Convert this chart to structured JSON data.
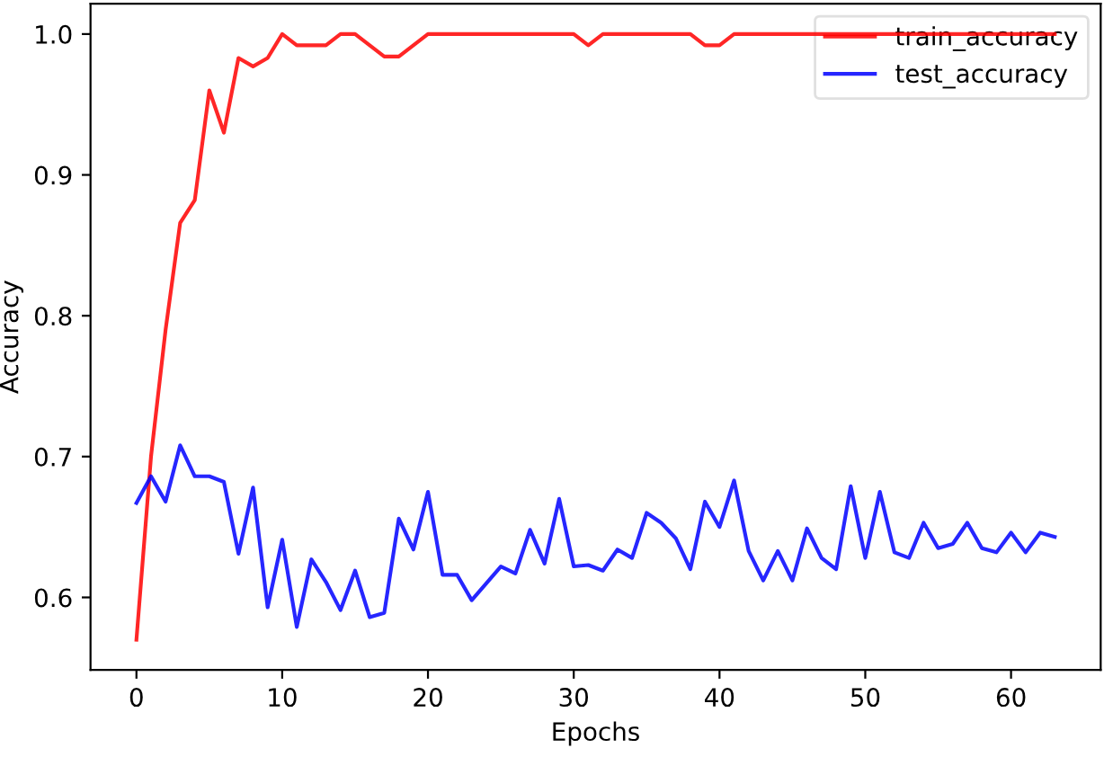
{
  "chart_data": {
    "type": "line",
    "xlabel": "Epochs",
    "ylabel": "Accuracy",
    "x": [
      0,
      1,
      2,
      3,
      4,
      5,
      6,
      7,
      8,
      9,
      10,
      11,
      12,
      13,
      14,
      15,
      16,
      17,
      18,
      19,
      20,
      21,
      22,
      23,
      24,
      25,
      26,
      27,
      28,
      29,
      30,
      31,
      32,
      33,
      34,
      35,
      36,
      37,
      38,
      39,
      40,
      41,
      42,
      43,
      44,
      45,
      46,
      47,
      48,
      49,
      50,
      51,
      52,
      53,
      54,
      55,
      56,
      57,
      58,
      59,
      60,
      61,
      62,
      63
    ],
    "series": [
      {
        "name": "train_accuracy",
        "color": "#ff0000",
        "values": [
          0.57,
          0.7,
          0.79,
          0.866,
          0.882,
          0.96,
          0.93,
          0.983,
          0.977,
          0.983,
          1.0,
          0.992,
          0.992,
          0.992,
          1.0,
          1.0,
          0.992,
          0.984,
          0.984,
          0.992,
          1.0,
          1.0,
          1.0,
          1.0,
          1.0,
          1.0,
          1.0,
          1.0,
          1.0,
          1.0,
          1.0,
          0.992,
          1.0,
          1.0,
          1.0,
          1.0,
          1.0,
          1.0,
          1.0,
          0.992,
          0.992,
          1.0,
          1.0,
          1.0,
          1.0,
          1.0,
          1.0,
          1.0,
          1.0,
          1.0,
          1.0,
          1.0,
          1.0,
          1.0,
          1.0,
          1.0,
          1.0,
          1.0,
          1.0,
          1.0,
          1.0,
          1.0,
          1.0,
          1.0
        ]
      },
      {
        "name": "test_accuracy",
        "color": "#0000ff",
        "values": [
          0.667,
          0.686,
          0.668,
          0.708,
          0.686,
          0.686,
          0.682,
          0.631,
          0.678,
          0.593,
          0.641,
          0.579,
          0.627,
          0.611,
          0.591,
          0.619,
          0.586,
          0.589,
          0.656,
          0.634,
          0.675,
          0.616,
          0.616,
          0.598,
          0.61,
          0.622,
          0.617,
          0.648,
          0.624,
          0.67,
          0.622,
          0.623,
          0.619,
          0.634,
          0.628,
          0.66,
          0.653,
          0.642,
          0.62,
          0.668,
          0.65,
          0.683,
          0.633,
          0.612,
          0.633,
          0.612,
          0.649,
          0.628,
          0.62,
          0.679,
          0.628,
          0.675,
          0.632,
          0.628,
          0.653,
          0.635,
          0.638,
          0.653,
          0.635,
          0.632,
          0.646,
          0.632,
          0.646,
          0.643
        ]
      }
    ],
    "xlim": [
      -3.15,
      66.15
    ],
    "xticks": [
      0,
      10,
      20,
      30,
      40,
      50,
      60
    ],
    "ylim": [
      0.5485,
      1.0215
    ],
    "yticks": [
      0.6,
      0.7,
      0.8,
      0.9,
      {
        "value": 1.0,
        "label": "1.0"
      }
    ],
    "legend": "top right",
    "grid": false,
    "marker": "none",
    "line_style": "solid"
  }
}
